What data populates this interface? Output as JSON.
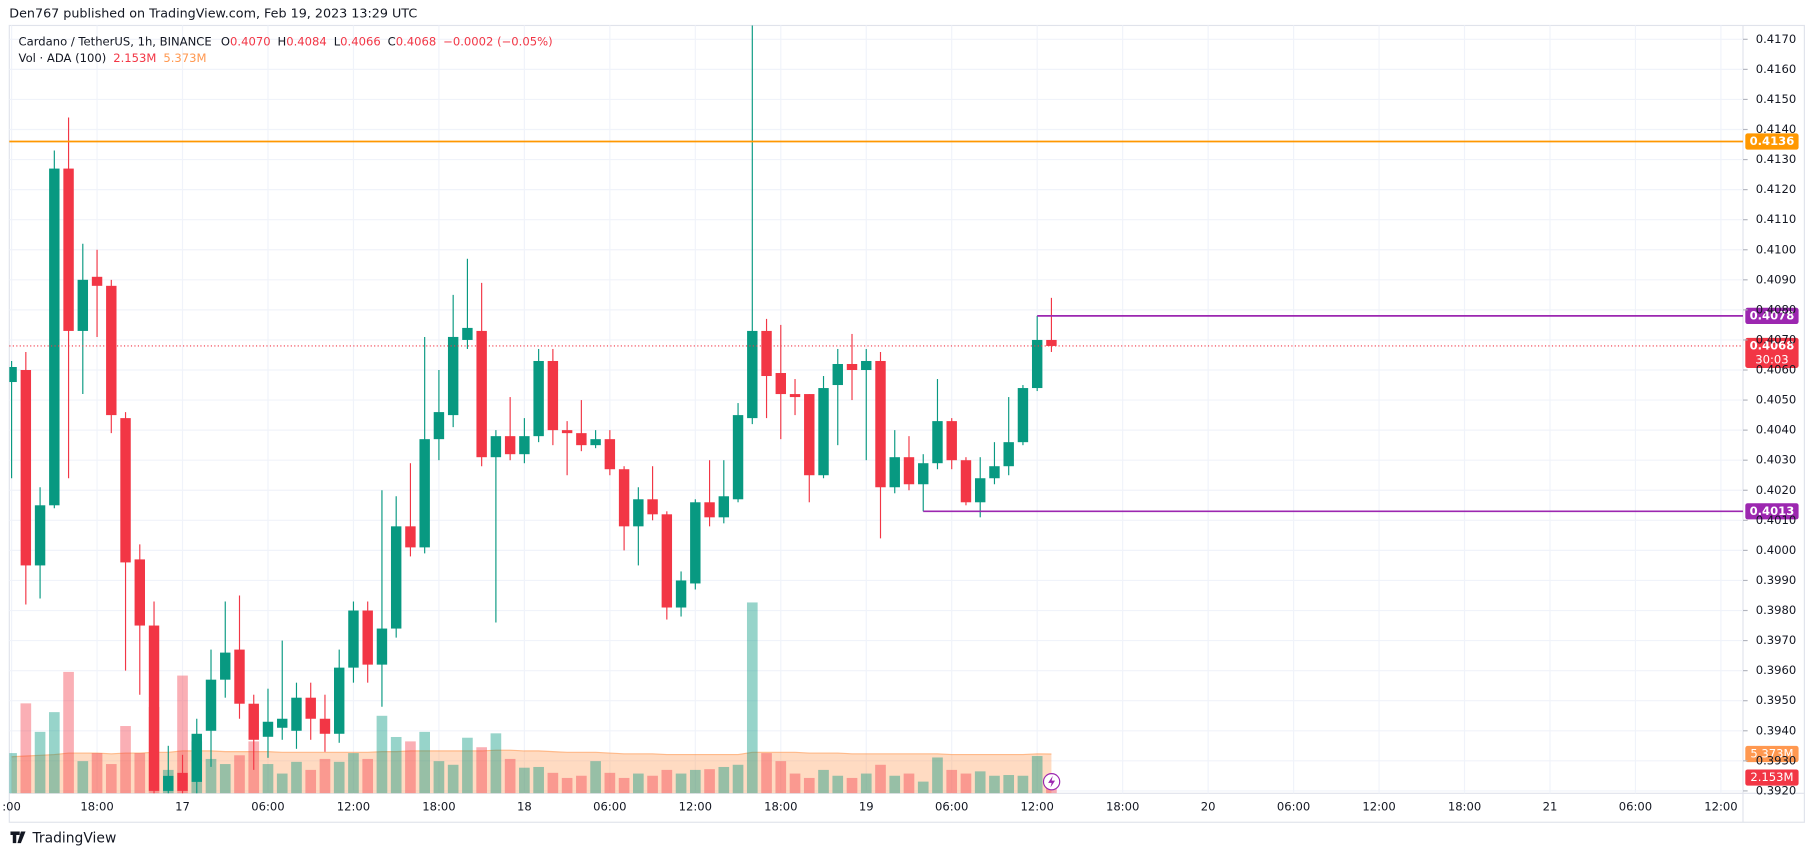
{
  "header": {
    "published": "Den767 published on TradingView.com, Feb 19, 2023 13:29 UTC",
    "brand": "TradingView"
  },
  "legend": {
    "symbol": "Cardano / TetherUS, 1h, BINANCE",
    "ohlc": [
      [
        "O",
        "0.4070"
      ],
      [
        "H",
        "0.4084"
      ],
      [
        "L",
        "0.4066"
      ],
      [
        "C",
        "0.4068"
      ]
    ],
    "change": "−0.0002 (−0.05%)",
    "volume_title": "Vol · ADA (100)"
  },
  "chart_data": {
    "type": "candlestick",
    "up_color": "#089981",
    "down_color": "#f23645",
    "open": [
      0.4056,
      0.406,
      0.3995,
      0.4015,
      0.4127,
      0.4073,
      0.4091,
      0.4088,
      0.4044,
      0.3997,
      0.3975,
      0.392,
      0.3926,
      0.3923,
      0.394,
      0.3957,
      0.3967,
      0.3949,
      0.3938,
      0.3941,
      0.394,
      0.3951,
      0.3944,
      0.3939,
      0.3961,
      0.398,
      0.3962,
      0.3974,
      0.4008,
      0.4001,
      0.4037,
      0.4045,
      0.407,
      0.4073,
      0.4031,
      0.4038,
      0.4032,
      0.4038,
      0.4063,
      0.404,
      0.4039,
      0.4035,
      0.4037,
      0.4027,
      0.4008,
      0.4017,
      0.4012,
      0.3981,
      0.3989,
      0.4016,
      0.4011,
      0.4017,
      0.4044,
      0.4073,
      0.4059,
      0.4052,
      0.4052,
      0.4025,
      0.4055,
      0.4062,
      0.406,
      0.4063,
      0.4021,
      0.4031,
      0.4022,
      0.4029,
      0.4043,
      0.403,
      0.4016,
      0.4024,
      0.4028,
      0.4036,
      0.4054,
      0.407
    ],
    "high": [
      0.4063,
      0.4066,
      0.4021,
      0.4133,
      0.4144,
      0.4102,
      0.41,
      0.409,
      0.4046,
      0.4002,
      0.3983,
      0.3935,
      0.3932,
      0.3944,
      0.3967,
      0.3983,
      0.3985,
      0.3952,
      0.3954,
      0.397,
      0.3956,
      0.3956,
      0.3952,
      0.3967,
      0.3983,
      0.3983,
      0.402,
      0.4018,
      0.4029,
      0.4071,
      0.406,
      0.4085,
      0.4097,
      0.4089,
      0.404,
      0.4051,
      0.4044,
      0.4067,
      0.4067,
      0.4043,
      0.405,
      0.404,
      0.404,
      0.4028,
      0.4021,
      0.4028,
      0.4013,
      0.3993,
      0.4017,
      0.403,
      0.403,
      0.4049,
      0.4177,
      0.4077,
      0.4075,
      0.4057,
      0.4052,
      0.4058,
      0.4067,
      0.4072,
      0.4067,
      0.4066,
      0.404,
      0.4038,
      0.4032,
      0.4057,
      0.4044,
      0.4031,
      0.4031,
      0.4036,
      0.4051,
      0.4055,
      0.4078,
      0.4084
    ],
    "low": [
      0.4024,
      0.3982,
      0.3984,
      0.4014,
      0.4024,
      0.4052,
      0.4071,
      0.4039,
      0.396,
      0.3952,
      0.3916,
      0.3912,
      0.3914,
      0.3918,
      0.3928,
      0.3951,
      0.3944,
      0.3927,
      0.3931,
      0.3937,
      0.3934,
      0.3937,
      0.3933,
      0.3936,
      0.3956,
      0.3956,
      0.3948,
      0.3971,
      0.3998,
      0.3999,
      0.403,
      0.4041,
      0.4067,
      0.4028,
      0.3976,
      0.403,
      0.4029,
      0.4036,
      0.4035,
      0.4025,
      0.4033,
      0.4034,
      0.4025,
      0.4,
      0.3995,
      0.401,
      0.3977,
      0.3978,
      0.3987,
      0.4008,
      0.4009,
      0.4016,
      0.4042,
      0.4044,
      0.4037,
      0.4045,
      0.4016,
      0.4024,
      0.4035,
      0.405,
      0.403,
      0.4004,
      0.4019,
      0.402,
      0.4013,
      0.4027,
      0.4027,
      0.4015,
      0.4011,
      0.4022,
      0.4025,
      0.4035,
      0.4053,
      0.4066
    ],
    "close": [
      0.4061,
      0.3995,
      0.4015,
      0.4127,
      0.4073,
      0.409,
      0.4088,
      0.4045,
      0.3996,
      0.3975,
      0.392,
      0.3925,
      0.392,
      0.3939,
      0.3957,
      0.3966,
      0.3949,
      0.3937,
      0.3943,
      0.3944,
      0.3951,
      0.3944,
      0.3939,
      0.3961,
      0.398,
      0.3962,
      0.3974,
      0.4008,
      0.4001,
      0.4037,
      0.4046,
      0.4071,
      0.4074,
      0.4031,
      0.4038,
      0.4032,
      0.4038,
      0.4063,
      0.404,
      0.4039,
      0.4035,
      0.4037,
      0.4027,
      0.4008,
      0.4017,
      0.4012,
      0.3981,
      0.399,
      0.4016,
      0.4011,
      0.4018,
      0.4045,
      0.4073,
      0.4058,
      0.4052,
      0.4051,
      0.4025,
      0.4054,
      0.4062,
      0.406,
      0.4063,
      0.4021,
      0.4031,
      0.4022,
      0.4029,
      0.4043,
      0.403,
      0.4016,
      0.4024,
      0.4028,
      0.4036,
      0.4054,
      0.407,
      0.4068
    ],
    "volume": {
      "values": [
        5.5,
        12.3,
        8.4,
        11.1,
        16.6,
        4.4,
        5.5,
        4.0,
        9.2,
        5.5,
        11.8,
        3.2,
        16.1,
        7.1,
        4.7,
        4.0,
        5.2,
        7.1,
        4.0,
        2.7,
        4.3,
        3.2,
        4.7,
        4.3,
        5.5,
        4.7,
        10.6,
        7.7,
        7.1,
        8.4,
        4.4,
        3.9,
        7.6,
        6.3,
        8.2,
        4.7,
        3.5,
        3.6,
        2.8,
        2.1,
        2.4,
        4.4,
        2.8,
        2.1,
        2.7,
        2.4,
        3.2,
        2.7,
        3.2,
        3.3,
        3.6,
        3.9,
        26.1,
        5.5,
        4.4,
        2.7,
        2.1,
        3.2,
        2.4,
        2.1,
        2.7,
        3.9,
        2.4,
        2.7,
        1.6,
        4.9,
        3.2,
        2.7,
        3.0,
        2.4,
        2.5,
        2.4,
        5.1,
        2.153
      ],
      "label": "2.153M",
      "up_color": "rgba(8,153,129,0.42)",
      "down_color": "rgba(242,54,69,0.4)"
    },
    "volume_ma": {
      "values": [
        5.0,
        5.1,
        5.2,
        5.3,
        5.5,
        5.5,
        5.5,
        5.4,
        5.5,
        5.5,
        5.6,
        5.6,
        5.8,
        5.8,
        5.8,
        5.7,
        5.7,
        5.7,
        5.7,
        5.6,
        5.6,
        5.6,
        5.6,
        5.6,
        5.6,
        5.6,
        5.7,
        5.7,
        5.8,
        5.8,
        5.8,
        5.8,
        5.8,
        5.8,
        5.9,
        5.9,
        5.8,
        5.8,
        5.7,
        5.6,
        5.6,
        5.6,
        5.5,
        5.4,
        5.4,
        5.4,
        5.3,
        5.3,
        5.3,
        5.3,
        5.3,
        5.3,
        5.6,
        5.6,
        5.6,
        5.6,
        5.5,
        5.5,
        5.5,
        5.4,
        5.4,
        5.4,
        5.4,
        5.4,
        5.4,
        5.4,
        5.3,
        5.3,
        5.3,
        5.3,
        5.3,
        5.3,
        5.4,
        5.373
      ],
      "label": "5.373M",
      "color": "#ff9850"
    },
    "volume_ylim": [
      0,
      105
    ],
    "xlim": [
      -0.16,
      121.55
    ],
    "xticks": [
      {
        "value": 0,
        "label": ":00"
      },
      {
        "value": 6,
        "label": "18:00"
      },
      {
        "value": 12,
        "label": "17"
      },
      {
        "value": 18,
        "label": "06:00"
      },
      {
        "value": 24,
        "label": "12:00"
      },
      {
        "value": 30,
        "label": "18:00"
      },
      {
        "value": 36,
        "label": "18"
      },
      {
        "value": 42,
        "label": "06:00"
      },
      {
        "value": 48,
        "label": "12:00"
      },
      {
        "value": 54,
        "label": "18:00"
      },
      {
        "value": 60,
        "label": "19"
      },
      {
        "value": 66,
        "label": "06:00"
      },
      {
        "value": 72,
        "label": "12:00"
      },
      {
        "value": 78,
        "label": "18:00"
      },
      {
        "value": 84,
        "label": "20"
      },
      {
        "value": 90,
        "label": "06:00"
      },
      {
        "value": 96,
        "label": "12:00"
      },
      {
        "value": 102,
        "label": "18:00"
      },
      {
        "value": 108,
        "label": "21"
      },
      {
        "value": 114,
        "label": "06:00"
      },
      {
        "value": 120,
        "label": "12:00"
      }
    ],
    "ylim": [
      0.39192,
      0.41746
    ],
    "yticks": [
      {
        "value": 0.417,
        "label": "0.4170"
      },
      {
        "value": 0.416,
        "label": "0.4160"
      },
      {
        "value": 0.415,
        "label": "0.4150"
      },
      {
        "value": 0.414,
        "label": "0.4140"
      },
      {
        "value": 0.413,
        "label": "0.4130"
      },
      {
        "value": 0.412,
        "label": "0.4120"
      },
      {
        "value": 0.411,
        "label": "0.4110"
      },
      {
        "value": 0.41,
        "label": "0.4100"
      },
      {
        "value": 0.409,
        "label": "0.4090"
      },
      {
        "value": 0.408,
        "label": "0.4080"
      },
      {
        "value": 0.407,
        "label": "0.4070"
      },
      {
        "value": 0.406,
        "label": "0.4060"
      },
      {
        "value": 0.405,
        "label": "0.4050"
      },
      {
        "value": 0.404,
        "label": "0.4040"
      },
      {
        "value": 0.403,
        "label": "0.4030"
      },
      {
        "value": 0.402,
        "label": "0.4020"
      },
      {
        "value": 0.401,
        "label": "0.4010"
      },
      {
        "value": 0.4,
        "label": "0.4000"
      },
      {
        "value": 0.399,
        "label": "0.3990"
      },
      {
        "value": 0.398,
        "label": "0.3980"
      },
      {
        "value": 0.397,
        "label": "0.3970"
      },
      {
        "value": 0.396,
        "label": "0.3960"
      },
      {
        "value": 0.395,
        "label": "0.3950"
      },
      {
        "value": 0.394,
        "label": "0.3940"
      },
      {
        "value": 0.393,
        "label": "0.3930"
      },
      {
        "value": 0.392,
        "label": "0.3920"
      }
    ],
    "grid": true,
    "price_lines": [
      {
        "value": 0.4136,
        "color": "#ff9800"
      },
      {
        "value": 0.4078,
        "color": "#9c27b0",
        "x_start": 72
      },
      {
        "value": 0.4013,
        "color": "#9c27b0",
        "x_start": 64
      },
      {
        "value": 0.4068,
        "color": "#f23645",
        "style": "dotted",
        "countdown": "30:03"
      }
    ]
  }
}
